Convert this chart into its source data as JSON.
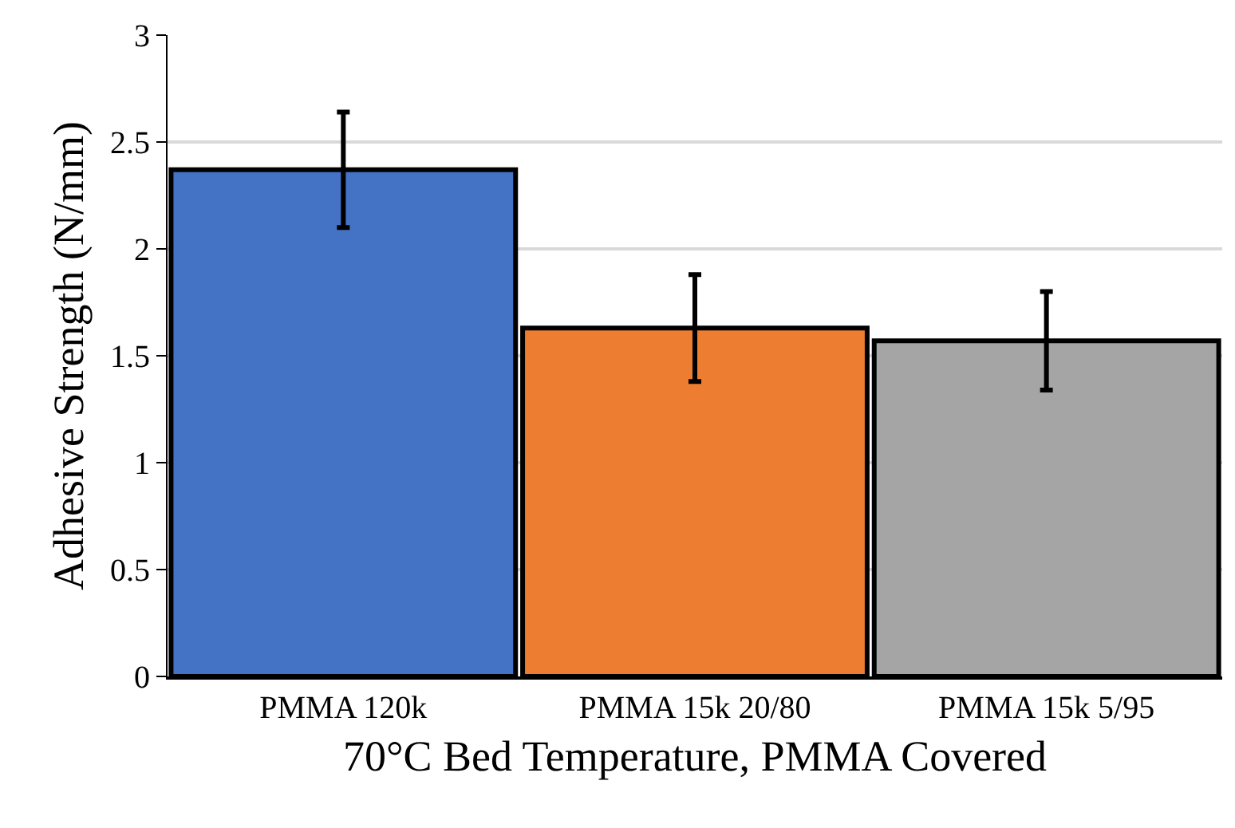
{
  "chart_data": {
    "type": "bar",
    "xlabel": "70°C Bed Temperature, PMMA Covered",
    "ylabel": "Adhesive Strength (N/mm)",
    "categories": [
      "PMMA 120k",
      "PMMA 15k 20/80",
      "PMMA 15k 5/95"
    ],
    "values": [
      2.37,
      1.63,
      1.57
    ],
    "errors": [
      0.27,
      0.25,
      0.23
    ],
    "colors": [
      "#4472c4",
      "#ed7d31",
      "#a5a5a5"
    ],
    "ylim": [
      0,
      3
    ],
    "yticks": [
      0,
      0.5,
      1,
      1.5,
      2,
      2.5,
      3
    ],
    "grid": "y"
  }
}
